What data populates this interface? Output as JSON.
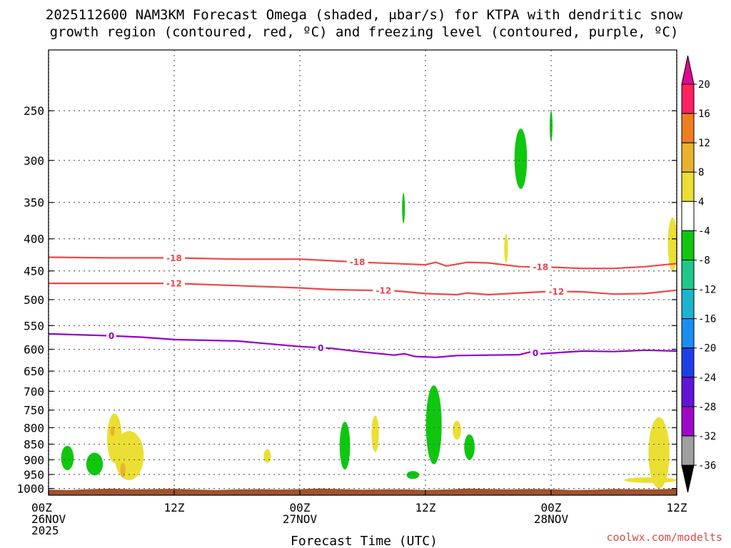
{
  "chart_data": {
    "type": "heatmap",
    "title": [
      "2025112600 NAM3KM Forecast Omega (shaded, μbar/s) for KTPA with dendritic snow",
      "growth region (contoured, red, ºC) and freezing level (contoured, purple, ºC)"
    ],
    "xlabel": "Forecast Time (UTC)",
    "credit": "coolwx.com/modelts",
    "x_range_hours": [
      0,
      60
    ],
    "y_range_hpa": [
      200,
      1025
    ],
    "y_ticks": [
      250,
      300,
      350,
      400,
      450,
      500,
      550,
      600,
      650,
      700,
      750,
      800,
      850,
      900,
      950,
      1000
    ],
    "x_ticks": [
      {
        "hour": 0,
        "lines": [
          "00Z",
          "26NOV",
          "2025"
        ]
      },
      {
        "hour": 12,
        "lines": [
          "12Z"
        ]
      },
      {
        "hour": 24,
        "lines": [
          "00Z",
          "27NOV"
        ]
      },
      {
        "hour": 36,
        "lines": [
          "12Z"
        ]
      },
      {
        "hour": 48,
        "lines": [
          "00Z",
          "28NOV"
        ]
      },
      {
        "hour": 60,
        "lines": [
          "12Z"
        ]
      }
    ],
    "colorbar": {
      "labels": [
        "20",
        "16",
        "12",
        "8",
        "4",
        "-4",
        "-8",
        "-12",
        "-16",
        "-20",
        "-24",
        "-28",
        "-32",
        "-36"
      ],
      "colors": [
        "#ff2060",
        "#ee7d22",
        "#e9b22e",
        "#eadf32",
        "#ffffff",
        "#0fc70f",
        "#1ec88a",
        "#1ab5cd",
        "#1a8ef0",
        "#1e3fe8",
        "#6215d6",
        "#9e09c8",
        "#a0a0a0"
      ],
      "top_arrow_color": "#e00890",
      "bottom_arrow_color": "#000000"
    },
    "contours": [
      {
        "name": "dgz-top",
        "label": "-18",
        "color": "#ee4646",
        "label_hours": [
          12,
          29.5,
          47
        ],
        "points": [
          [
            0,
            428
          ],
          [
            6,
            429
          ],
          [
            12,
            429
          ],
          [
            18,
            431
          ],
          [
            24,
            431
          ],
          [
            30,
            436
          ],
          [
            33,
            438
          ],
          [
            36,
            440
          ],
          [
            37,
            436
          ],
          [
            38,
            442
          ],
          [
            40,
            436
          ],
          [
            42,
            437
          ],
          [
            45,
            443
          ],
          [
            48,
            444
          ],
          [
            51,
            446
          ],
          [
            54,
            446
          ],
          [
            57,
            443
          ],
          [
            60,
            438
          ]
        ]
      },
      {
        "name": "dgz-bottom",
        "label": "-12",
        "color": "#ee4646",
        "label_hours": [
          12,
          32,
          48.5
        ],
        "points": [
          [
            0,
            471
          ],
          [
            6,
            471
          ],
          [
            12,
            471
          ],
          [
            18,
            475
          ],
          [
            24,
            479
          ],
          [
            27,
            482
          ],
          [
            33,
            484
          ],
          [
            36,
            489
          ],
          [
            39,
            491
          ],
          [
            40,
            488
          ],
          [
            42,
            491
          ],
          [
            45,
            488
          ],
          [
            48,
            485
          ],
          [
            51,
            486
          ],
          [
            54,
            490
          ],
          [
            57,
            489
          ],
          [
            60,
            483
          ]
        ]
      },
      {
        "name": "freezing-level",
        "label": "0",
        "color": "#9500c6",
        "label_hours": [
          6,
          26,
          46.5
        ],
        "points": [
          [
            0,
            567
          ],
          [
            6,
            571
          ],
          [
            9,
            574
          ],
          [
            12,
            579
          ],
          [
            18,
            582
          ],
          [
            24,
            594
          ],
          [
            27,
            598
          ],
          [
            30,
            606
          ],
          [
            33,
            613
          ],
          [
            34,
            610
          ],
          [
            35,
            616
          ],
          [
            37,
            618
          ],
          [
            39,
            614
          ],
          [
            42,
            613
          ],
          [
            45,
            612
          ],
          [
            46,
            606
          ],
          [
            47,
            610
          ],
          [
            51,
            604
          ],
          [
            54,
            605
          ],
          [
            57,
            602
          ],
          [
            60,
            604
          ]
        ]
      }
    ],
    "omega_regions": [
      {
        "name": "shade-green-1",
        "category": "-4",
        "color": "#0fc70f",
        "center": [
          1.8,
          895
        ],
        "half_width_h": 0.6,
        "half_depth_hpa": 40
      },
      {
        "name": "shade-green-2",
        "category": "-4",
        "color": "#0fc70f",
        "center": [
          4.4,
          915
        ],
        "half_width_h": 0.8,
        "half_depth_hpa": 38
      },
      {
        "name": "shade-yellow-1",
        "category": "4",
        "color": "#eadf32",
        "center": [
          6.3,
          835
        ],
        "half_width_h": 0.7,
        "half_depth_hpa": 75
      },
      {
        "name": "shade-yellow-2",
        "category": "4",
        "color": "#eadf32",
        "center": [
          7.7,
          890
        ],
        "half_width_h": 1.4,
        "half_depth_hpa": 80
      },
      {
        "name": "shade-orange-1",
        "category": "8",
        "color": "#e9b22e",
        "center": [
          6.1,
          810
        ],
        "half_width_h": 0.2,
        "half_depth_hpa": 15
      },
      {
        "name": "shade-orange-2",
        "category": "8",
        "color": "#e9b22e",
        "center": [
          7.1,
          935
        ],
        "half_width_h": 0.25,
        "half_depth_hpa": 25
      },
      {
        "name": "shade-yellow-3",
        "category": "4",
        "color": "#eadf32",
        "center": [
          20.9,
          888
        ],
        "half_width_h": 0.35,
        "half_depth_hpa": 22
      },
      {
        "name": "shade-green-3",
        "category": "-4",
        "color": "#0fc70f",
        "center": [
          28.3,
          858
        ],
        "half_width_h": 0.5,
        "half_depth_hpa": 75
      },
      {
        "name": "shade-yellow-4",
        "category": "4",
        "color": "#eadf32",
        "center": [
          31.2,
          820
        ],
        "half_width_h": 0.35,
        "half_depth_hpa": 55
      },
      {
        "name": "shade-green-4",
        "category": "-4",
        "color": "#0fc70f",
        "center": [
          33.9,
          358
        ],
        "half_width_h": 0.12,
        "half_depth_hpa": 20
      },
      {
        "name": "shade-green-5",
        "category": "-4",
        "color": "#0fc70f",
        "center": [
          34.8,
          952
        ],
        "half_width_h": 0.6,
        "half_depth_hpa": 14
      },
      {
        "name": "shade-green-6",
        "category": "-4",
        "color": "#0fc70f",
        "center": [
          36.8,
          800
        ],
        "half_width_h": 0.75,
        "half_depth_hpa": 115
      },
      {
        "name": "shade-yellow-5",
        "category": "4",
        "color": "#eadf32",
        "center": [
          39.0,
          808
        ],
        "half_width_h": 0.4,
        "half_depth_hpa": 28
      },
      {
        "name": "shade-green-7",
        "category": "-4",
        "color": "#0fc70f",
        "center": [
          40.2,
          860
        ],
        "half_width_h": 0.5,
        "half_depth_hpa": 40
      },
      {
        "name": "shade-yellow-6",
        "category": "4",
        "color": "#eadf32",
        "center": [
          43.7,
          415
        ],
        "half_width_h": 0.18,
        "half_depth_hpa": 22
      },
      {
        "name": "shade-green-8",
        "category": "-4",
        "color": "#0fc70f",
        "center": [
          45.1,
          300
        ],
        "half_width_h": 0.6,
        "half_depth_hpa": 33
      },
      {
        "name": "shade-green-9",
        "category": "-4",
        "color": "#0fc70f",
        "center": [
          48.0,
          265
        ],
        "half_width_h": 0.1,
        "half_depth_hpa": 15
      },
      {
        "name": "shade-yellow-7",
        "category": "4",
        "color": "#eadf32",
        "center": [
          58.3,
          885
        ],
        "half_width_h": 1.0,
        "half_depth_hpa": 115
      },
      {
        "name": "shade-yellow-8",
        "category": "4",
        "color": "#eadf32",
        "center": [
          57.5,
          970
        ],
        "half_width_h": 2.5,
        "half_depth_hpa": 10
      },
      {
        "name": "shade-yellow-9",
        "category": "4",
        "color": "#eadf32",
        "center": [
          59.6,
          410
        ],
        "half_width_h": 0.45,
        "half_depth_hpa": 40
      }
    ],
    "surface_band": {
      "name": "below-ground",
      "color": "#a0522d",
      "top_hpa": 1003
    }
  }
}
